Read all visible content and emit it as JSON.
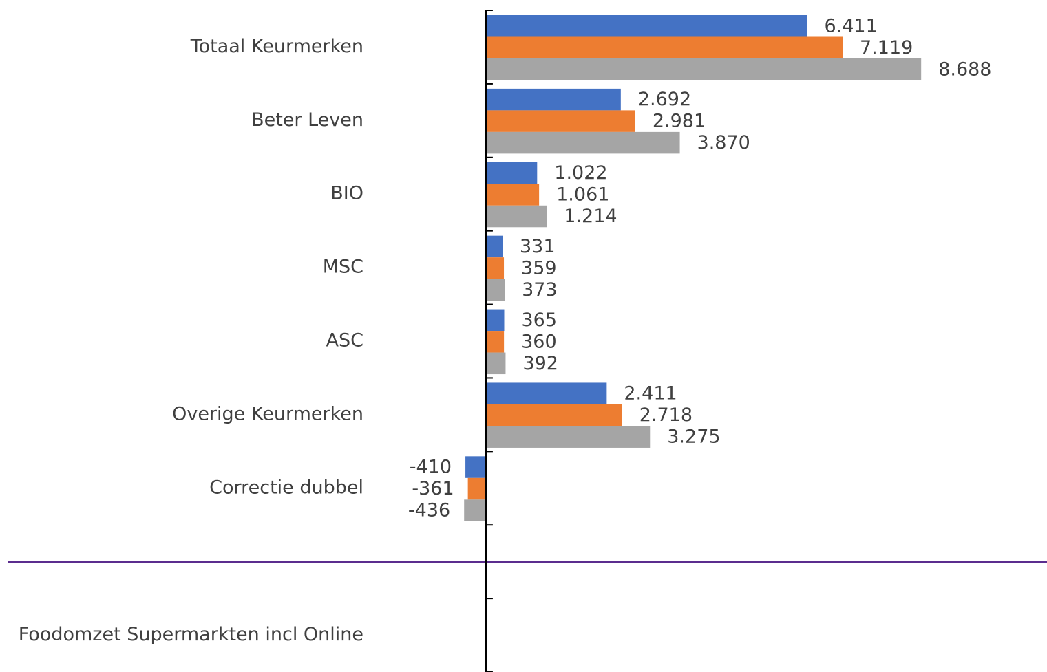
{
  "chart_data": {
    "type": "barh",
    "categories": [
      "Totaal Keurmerken",
      "Beter Leven",
      "BIO",
      "MSC",
      "ASC",
      "Overige Keurmerken",
      "Correctie dubbel",
      null,
      "Foodomzet Supermarkten incl Online"
    ],
    "series": [
      {
        "color": "#4472c4",
        "values": [
          6411,
          2692,
          1022,
          331,
          365,
          2411,
          -410,
          null,
          null
        ],
        "value_labels": [
          "6.411",
          "2.692",
          "1.022",
          "331",
          "365",
          "2.411",
          "-410",
          null,
          null
        ]
      },
      {
        "color": "#ed7d31",
        "values": [
          7119,
          2981,
          1061,
          359,
          360,
          2718,
          -361,
          null,
          null
        ],
        "value_labels": [
          "7.119",
          "2.981",
          "1.061",
          "359",
          "360",
          "2.718",
          "-361",
          null,
          null
        ]
      },
      {
        "color": "#a5a5a5",
        "values": [
          8688,
          3870,
          1214,
          373,
          392,
          3275,
          -436,
          null,
          null
        ],
        "value_labels": [
          "8.688",
          "3.870",
          "1.214",
          "373",
          "392",
          "3.275",
          "-436",
          null,
          null
        ]
      }
    ],
    "xlim": [
      -9700,
      11200
    ]
  }
}
